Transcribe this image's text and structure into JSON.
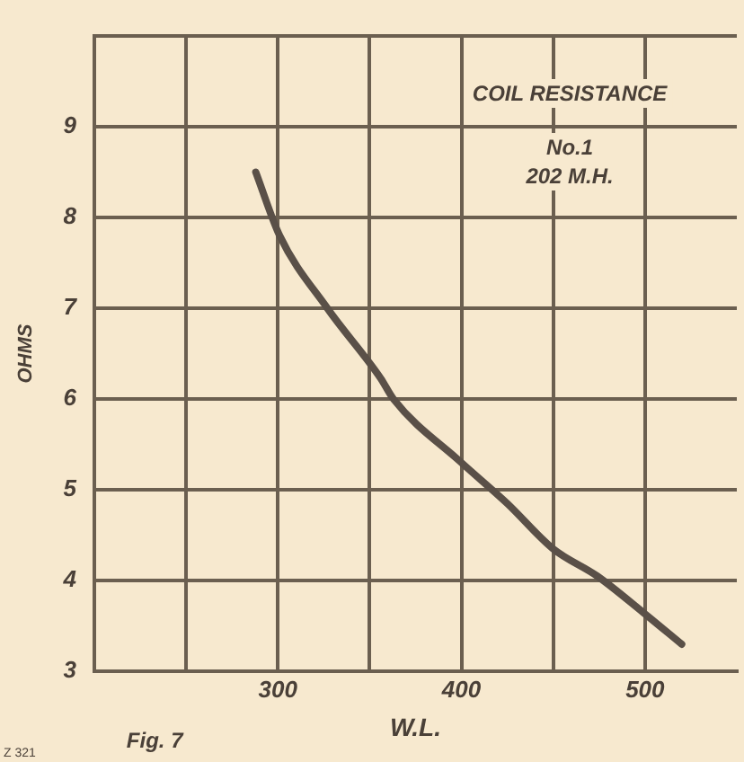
{
  "chart_data": {
    "type": "line",
    "title": "COIL RESISTANCE",
    "xlabel": "W.L.",
    "ylabel": "OHMS",
    "annotations": [
      "No.1 202 M.H.",
      "Fig. 7",
      "Z 321"
    ],
    "x": [
      288,
      301,
      327,
      356,
      363,
      400,
      425,
      450,
      474,
      499,
      520
    ],
    "series": [
      {
        "color": "#5a5048",
        "values": [
          8.5,
          7.8,
          7.0,
          6.23,
          6.0,
          5.3,
          4.85,
          4.35,
          4.05,
          3.65,
          3.3
        ]
      }
    ],
    "xlim": [
      200,
      550
    ],
    "xticks": [
      {
        "value": 250,
        "label": null
      },
      300,
      {
        "value": 350,
        "label": null
      },
      400,
      {
        "value": 450,
        "label": null
      },
      500
    ],
    "ylim": [
      3,
      10
    ],
    "yticks": [
      3,
      4,
      5,
      6,
      7,
      8,
      9,
      {
        "value": 10,
        "label": null
      }
    ],
    "grid": true,
    "legend": false,
    "marker": "none",
    "line_style": "solid"
  }
}
